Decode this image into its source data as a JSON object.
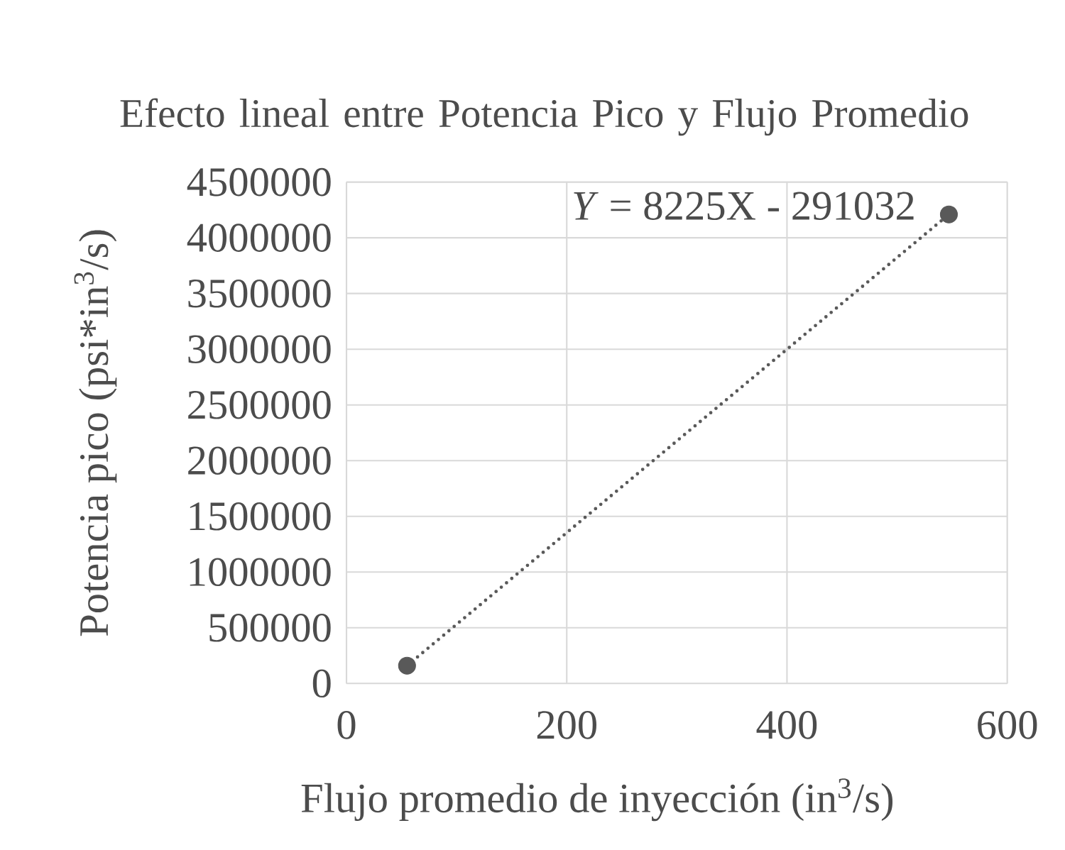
{
  "chart_data": {
    "type": "scatter",
    "title": "Efecto lineal entre Potencia Pico y Flujo Promedio",
    "xlabel": "Flujo promedio de inyección  (in$^{3}$/s)",
    "ylabel": "Potencia pico  (psi*in$^{3}$/s)",
    "x": [
      55,
      547
    ],
    "series": [
      {
        "color": "#595959",
        "values": [
          160000,
          4210000
        ]
      },
      {
        "type": "line",
        "color": "#595959",
        "values": [
          160000,
          4210000
        ],
        "line_style": "dotted"
      }
    ],
    "annotations": [
      "*Y* = 8225X - 291032"
    ],
    "xlim": [
      0,
      600
    ],
    "xticks": [
      0,
      200,
      400,
      600
    ],
    "ylim": [
      0,
      4500000
    ],
    "yticks": [
      0,
      500000,
      1000000,
      1500000,
      2000000,
      2500000,
      3000000,
      3500000,
      4000000,
      4500000
    ],
    "grid": true
  }
}
